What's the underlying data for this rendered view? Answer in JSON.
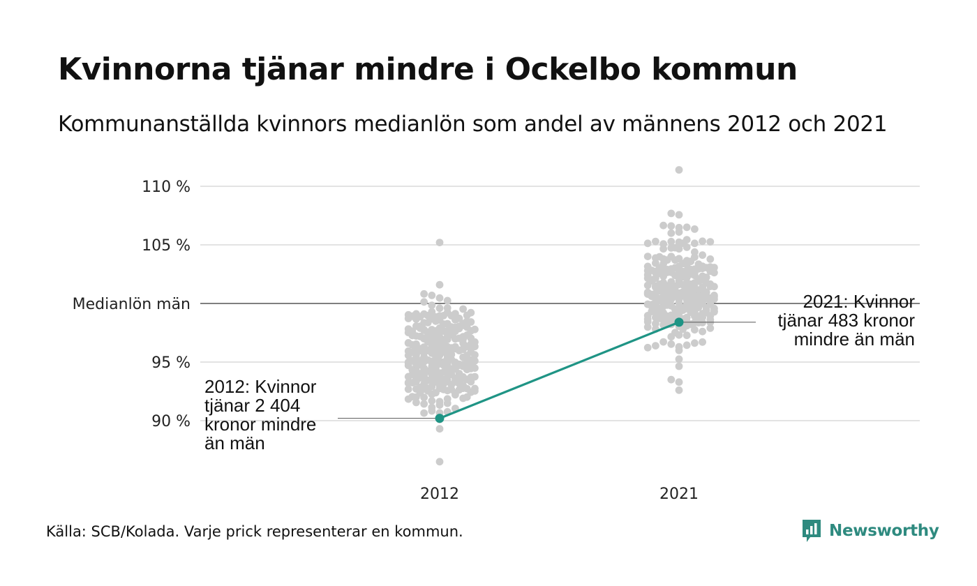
{
  "title": "Kvinnorna tjänar mindre i Ockelbo kommun",
  "subtitle": "Kommunanställda kvinnors medianlön som andel av männens 2012 och 2021",
  "source": "Källa: SCB/Kolada. Varje prick representerar en kommun.",
  "brand": {
    "name": "Newsworthy",
    "icon": "newsworthy-logo-icon",
    "color": "#2e8a7f"
  },
  "annotations": {
    "y2012": [
      "2012: Kvinnor",
      "tjänar 2 404",
      "kronor mindre",
      "än män"
    ],
    "y2021": [
      "2021: Kvinnor",
      "tjänar 483 kronor",
      "mindre än män"
    ]
  },
  "chart_data": {
    "type": "scatter",
    "subtype": "beeswarm",
    "categories": [
      "2012",
      "2021"
    ],
    "yticks": [
      {
        "value": 90,
        "label": "90 %"
      },
      {
        "value": 95,
        "label": "95 %"
      },
      {
        "value": 100,
        "label": "Medianlön män"
      },
      {
        "value": 105,
        "label": "105 %"
      },
      {
        "value": 110,
        "label": "110 %"
      }
    ],
    "ylim": [
      86,
      112
    ],
    "grid": true,
    "reference_line": {
      "value": 100,
      "label": "Medianlön män"
    },
    "colors": {
      "dots": "#cccccc",
      "highlight": "#1f9485",
      "grid": "#e3e3e3",
      "reference": "#333333"
    },
    "highlight": {
      "name": "Ockelbo",
      "values": [
        90.2,
        98.4
      ]
    },
    "distribution": [
      {
        "category": "2012",
        "mean": 95.6,
        "sd": 2.4,
        "min": 86.5,
        "max": 105.2,
        "count": 290
      },
      {
        "category": "2021",
        "mean": 101.3,
        "sd": 2.3,
        "min": 92.6,
        "max": 111.4,
        "count": 290
      }
    ]
  }
}
